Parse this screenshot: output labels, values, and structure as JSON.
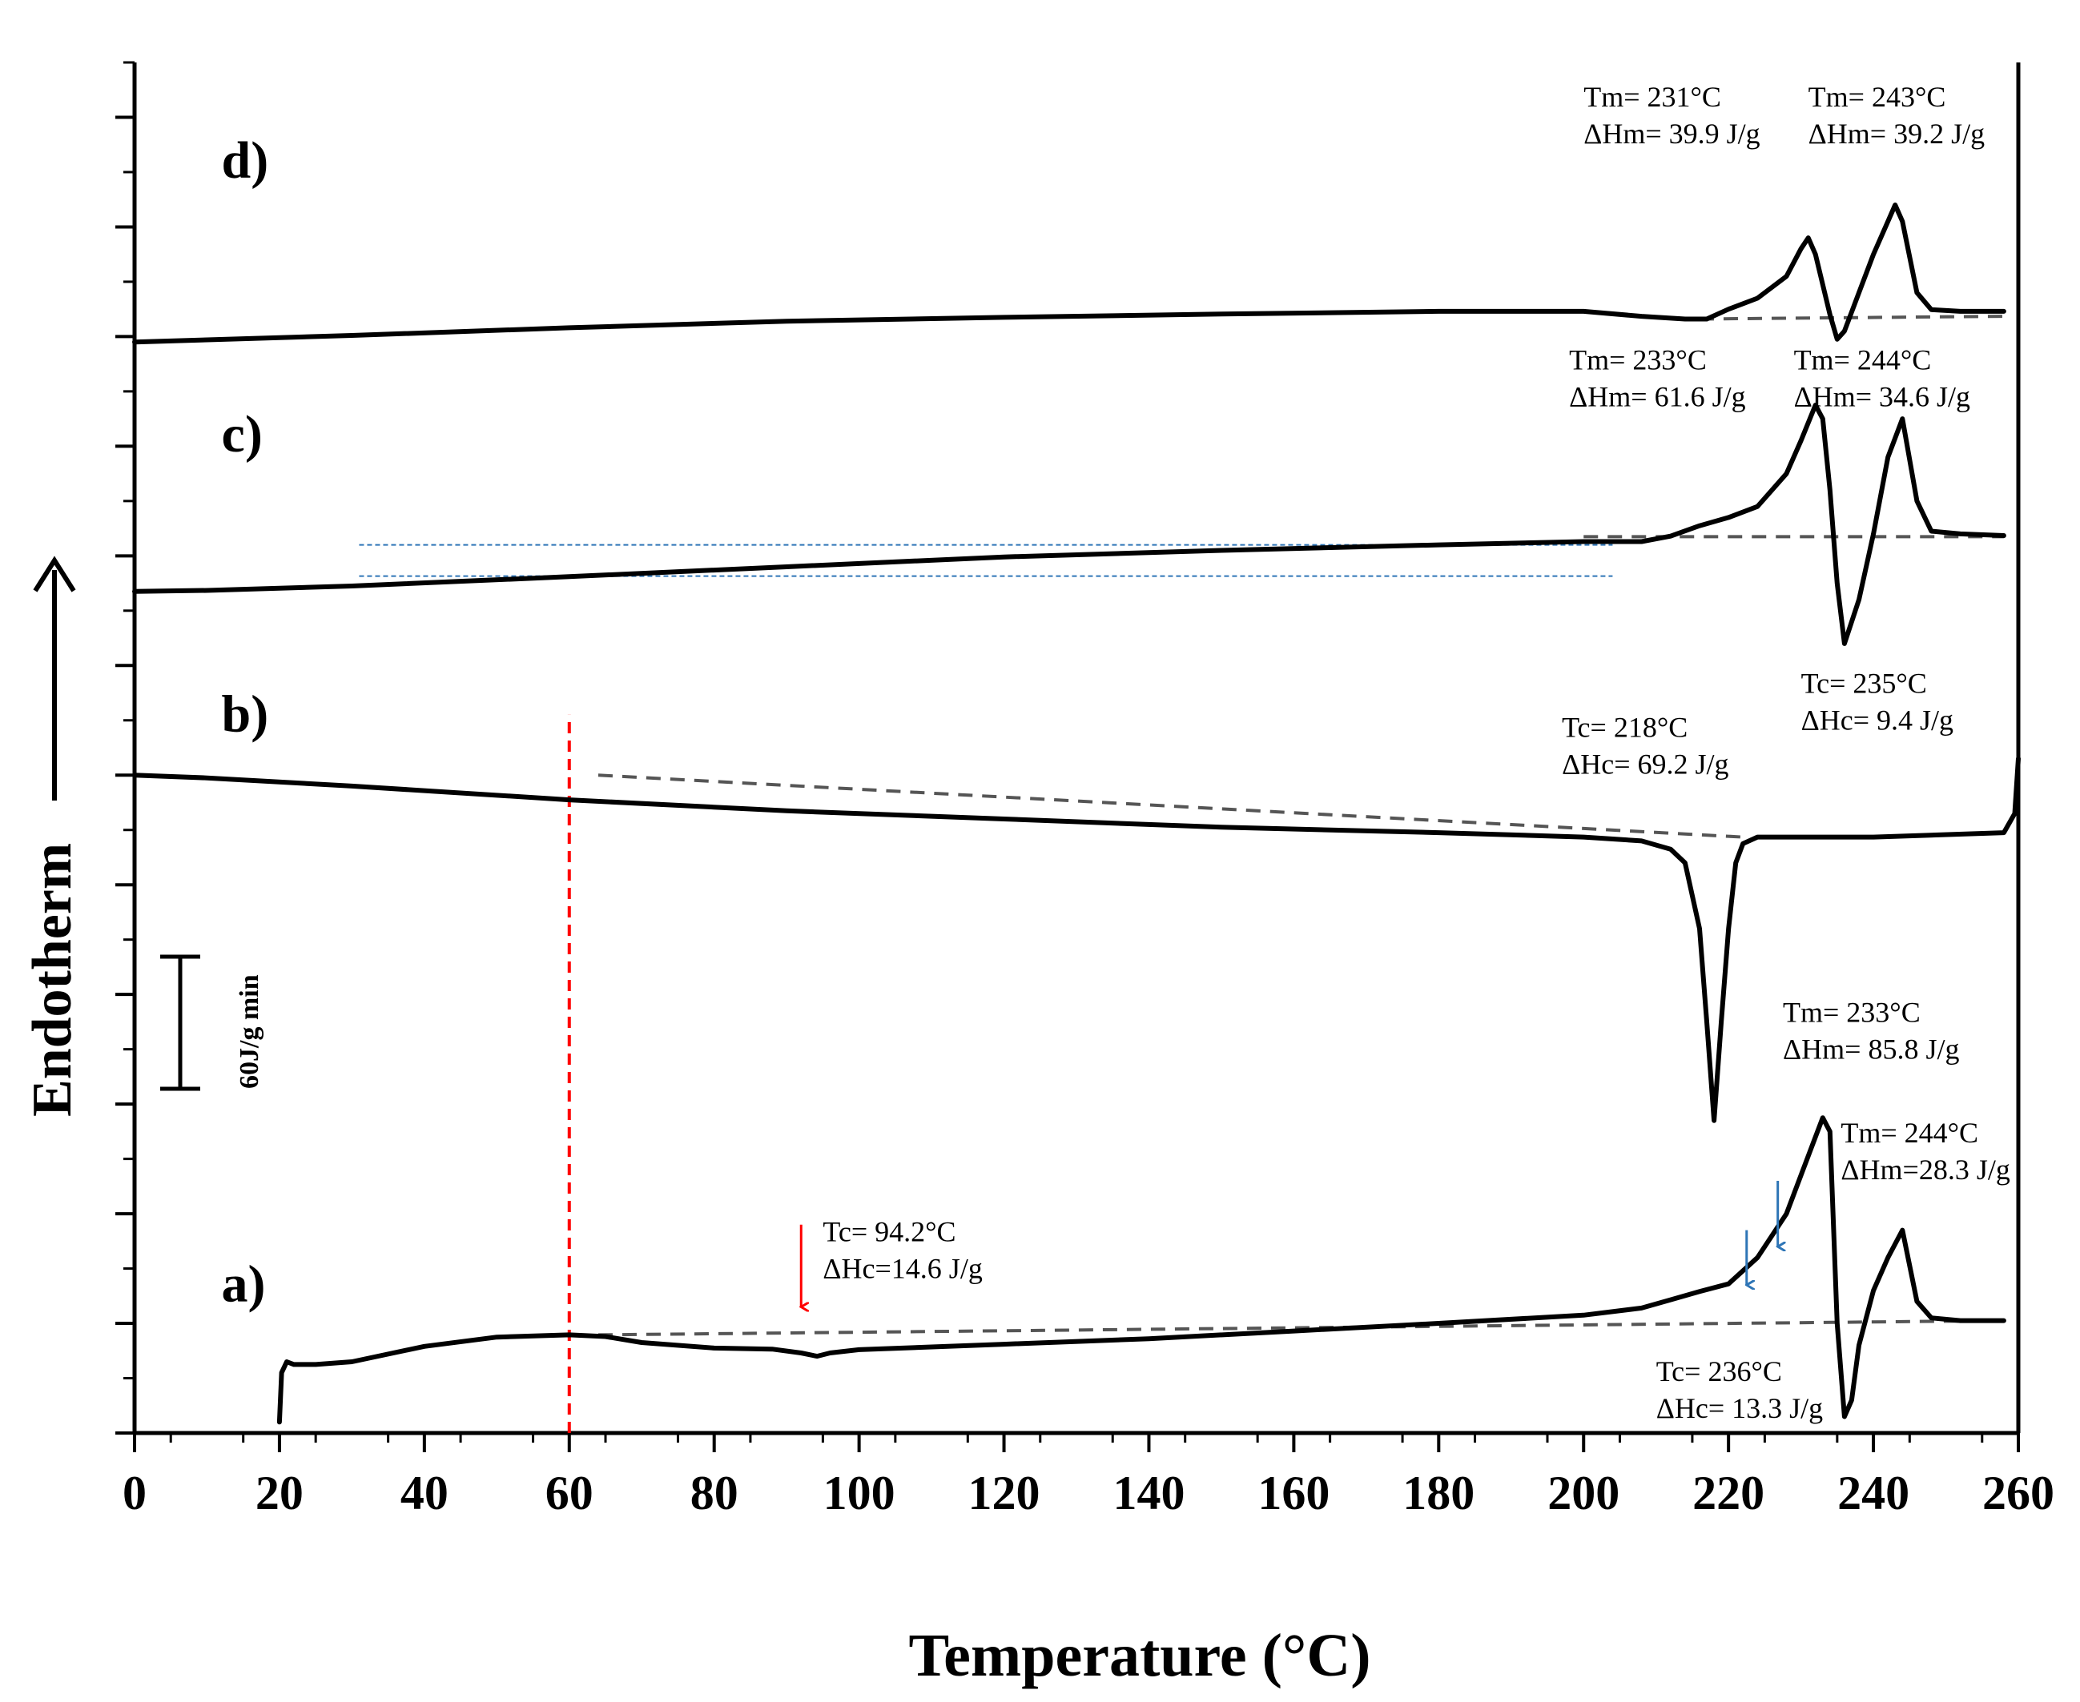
{
  "chart_data": {
    "type": "line",
    "title": "",
    "xlabel": "Temperature (°C)",
    "ylabel": "Endotherm",
    "xlim": [
      0,
      260
    ],
    "x_ticks": [
      "0",
      "20",
      "40",
      "60",
      "80",
      "100",
      "120",
      "140",
      "160",
      "180",
      "200",
      "220",
      "240",
      "260"
    ],
    "y_ticks": 25,
    "ylim": [
      0,
      250
    ],
    "scale_bar": {
      "label": "60J/g min",
      "value": 60
    },
    "colors": {
      "curve": "#000000",
      "baseline": "#555555",
      "red": "#ff0000",
      "blue": "#2e75b6"
    },
    "series": [
      {
        "name": "a)",
        "x": [
          20,
          20.3,
          21,
          22,
          25,
          30,
          40,
          50,
          60,
          65,
          70,
          80,
          88,
          92,
          94.2,
          96,
          100,
          110,
          120,
          140,
          160,
          180,
          200,
          208,
          212,
          216,
          220,
          224,
          228,
          230,
          232,
          233,
          234,
          235,
          236,
          237,
          238,
          240,
          242,
          244,
          246,
          248,
          252,
          258
        ],
        "y": [
          2,
          11,
          13,
          12.5,
          12.5,
          13,
          15.8,
          17.5,
          17.9,
          17.6,
          16.5,
          15.5,
          15.3,
          14.6,
          14.0,
          14.6,
          15.2,
          15.7,
          16.2,
          17.2,
          18.6,
          20.0,
          21.5,
          22.8,
          24.3,
          25.8,
          27.2,
          32.0,
          40.0,
          47.0,
          54.0,
          57.5,
          55.0,
          20.0,
          3.0,
          6.0,
          16.0,
          26.0,
          32.0,
          37.0,
          24.0,
          21.0,
          20.5,
          20.5
        ]
      },
      {
        "name": "b)",
        "x": [
          0,
          10,
          30,
          60,
          90,
          120,
          150,
          180,
          200,
          208,
          212,
          214,
          216,
          217,
          218,
          219,
          220,
          221,
          222,
          224,
          230,
          240,
          258,
          259.5,
          260
        ],
        "y": [
          120,
          119.5,
          118,
          115.5,
          113.5,
          112,
          110.5,
          109.5,
          108.7,
          108.0,
          106.5,
          104.0,
          92.0,
          75.0,
          57.0,
          75.0,
          92.0,
          104.0,
          107.5,
          108.7,
          108.7,
          108.7,
          109.5,
          113.0,
          123.0
        ]
      },
      {
        "name": "c)",
        "x": [
          0,
          10,
          30,
          60,
          90,
          120,
          150,
          180,
          200,
          208,
          212,
          216,
          220,
          224,
          228,
          230,
          232,
          233,
          234,
          235,
          236,
          238,
          240,
          242,
          244,
          246,
          248,
          252,
          258
        ],
        "y": [
          153.5,
          153.7,
          154.5,
          156.2,
          158,
          159.8,
          161.0,
          162.0,
          162.6,
          162.6,
          163.6,
          165.5,
          167.0,
          169.0,
          175.0,
          181.0,
          187.5,
          185.0,
          172.0,
          155.0,
          144.0,
          152.0,
          164.0,
          178.0,
          185.0,
          170.0,
          164.5,
          164.0,
          163.7
        ]
      },
      {
        "name": "d)",
        "x": [
          0,
          10,
          30,
          60,
          90,
          120,
          150,
          180,
          200,
          208,
          214,
          217,
          220,
          224,
          228,
          230,
          231,
          232,
          234,
          235,
          236,
          238,
          240,
          242,
          243,
          244,
          246,
          248,
          252,
          258
        ],
        "y": [
          199,
          199.4,
          200.2,
          201.6,
          202.8,
          203.5,
          204.1,
          204.6,
          204.6,
          203.7,
          203.2,
          203.2,
          205.0,
          207.0,
          211.0,
          216.0,
          218.0,
          215.0,
          204.0,
          199.5,
          201.0,
          208.0,
          215.0,
          221.0,
          224.0,
          221.0,
          208.0,
          204.9,
          204.6,
          204.6
        ]
      }
    ],
    "baselines": [
      {
        "curve": "a)",
        "x": [
          64,
          258
        ],
        "y": [
          17.9,
          20.5
        ]
      },
      {
        "curve": "b)",
        "x": [
          64,
          222
        ],
        "y": [
          120,
          108.7
        ]
      },
      {
        "curve": "c)",
        "x": [
          200,
          258
        ],
        "y": [
          163.5,
          163.5
        ]
      },
      {
        "curve": "d)",
        "x": [
          216,
          258
        ],
        "y": [
          203.2,
          203.7
        ]
      }
    ],
    "reference_lines": [
      {
        "style": "red-dashed-vertical",
        "x": 60,
        "y": [
          0,
          131
        ]
      },
      {
        "style": "blue-dotted-horizontal",
        "x": [
          31,
          204
        ],
        "y": 156.3
      },
      {
        "style": "blue-dotted-horizontal",
        "x": [
          31,
          204
        ],
        "y": 162.0
      }
    ],
    "markers": [
      {
        "style": "red-arrow",
        "x": 92,
        "y_top": 38,
        "y_tip": 23
      },
      {
        "style": "blue-arrow",
        "x": 222.5,
        "y_top": 37,
        "y_tip": 27
      },
      {
        "style": "blue-arrow",
        "x": 226.8,
        "y_top": 46,
        "y_tip": 34
      }
    ],
    "annotations": [
      {
        "curve": "a)",
        "id": "a-tc",
        "line1": "Tc= 94.2°C",
        "line2": "ΔHc=14.6 J/g",
        "x": 95,
        "y": 35
      },
      {
        "curve": "a)",
        "id": "a-tm233",
        "line1": "Tm= 233°C",
        "line2": "ΔHm= 85.8 J/g",
        "x": 227.5,
        "y": 75
      },
      {
        "curve": "a)",
        "id": "a-tm244",
        "line1": "Tm= 244°C",
        "line2": "ΔHm=28.3 J/g",
        "x": 235.5,
        "y": 53
      },
      {
        "curve": "a)",
        "id": "a-tc236",
        "line1": "Tc= 236°C",
        "line2": "ΔHc= 13.3 J/g",
        "x": 210,
        "y": 9.5
      },
      {
        "curve": "b)",
        "id": "b-tc218",
        "line1": "Tc= 218°C",
        "line2": "ΔHc= 69.2 J/g",
        "x": 197,
        "y": 127
      },
      {
        "curve": "b)",
        "id": "b-tc235",
        "line1": "Tc= 235°C",
        "line2": "ΔHc= 9.4 J/g",
        "x": 230,
        "y": 135
      },
      {
        "curve": "c)",
        "id": "c-tm233",
        "line1": "Tm= 233°C",
        "line2": "ΔHm= 61.6 J/g",
        "x": 198,
        "y": 194
      },
      {
        "curve": "c)",
        "id": "c-tm244",
        "line1": "Tm= 244°C",
        "line2": "ΔHm= 34.6 J/g",
        "x": 229,
        "y": 194
      },
      {
        "curve": "d)",
        "id": "d-tm231",
        "line1": "Tm= 231°C",
        "line2": "ΔHm= 39.9 J/g",
        "x": 200,
        "y": 242
      },
      {
        "curve": "d)",
        "id": "d-tm243",
        "line1": "Tm= 243°C",
        "line2": "ΔHm= 39.2 J/g",
        "x": 231,
        "y": 242
      }
    ],
    "curve_labels": [
      {
        "text": "a)",
        "x": 12,
        "y": 24
      },
      {
        "text": "b)",
        "x": 12,
        "y": 128
      },
      {
        "text": "c)",
        "x": 12,
        "y": 179
      },
      {
        "text": "d)",
        "x": 12,
        "y": 229
      }
    ]
  }
}
